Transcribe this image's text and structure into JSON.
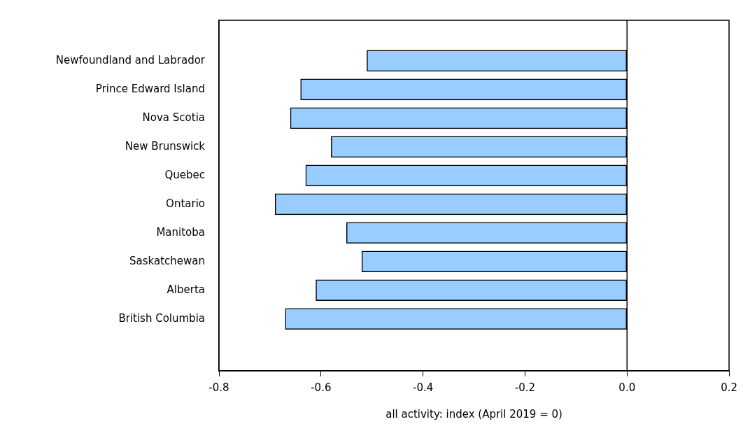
{
  "chart_data": {
    "type": "bar",
    "orientation": "horizontal",
    "xlabel": "all activity: index (April 2019 = 0)",
    "categories": [
      "Newfoundland and Labrador",
      "Prince Edward Island",
      "Nova Scotia",
      "New Brunswick",
      "Quebec",
      "Ontario",
      "Manitoba",
      "Saskatchewan",
      "Alberta",
      "British Columbia"
    ],
    "values": [
      -0.51,
      -0.64,
      -0.66,
      -0.58,
      -0.63,
      -0.69,
      -0.55,
      -0.52,
      -0.61,
      -0.67
    ],
    "color": "#99ccff",
    "xlim": [
      -0.8,
      0.2
    ],
    "xticks": [
      {
        "value": -0.8,
        "label": "-0.8"
      },
      {
        "value": -0.6,
        "label": "-0.6"
      },
      {
        "value": -0.4,
        "label": "-0.4"
      },
      {
        "value": -0.2,
        "label": "-0.2"
      },
      {
        "value": 0,
        "label": "0.0"
      },
      {
        "value": 0.2,
        "label": "0.2"
      }
    ],
    "ref_lines": [
      {
        "axis": "x",
        "value": 0,
        "color": "#000000"
      }
    ],
    "grid": false,
    "legend": false
  }
}
